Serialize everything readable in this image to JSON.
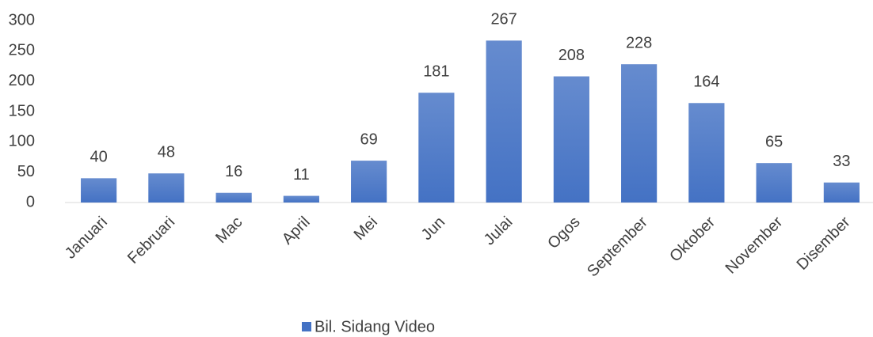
{
  "chart_data": {
    "type": "bar",
    "categories": [
      "Januari",
      "Februari",
      "Mac",
      "April",
      "Mei",
      "Jun",
      "Julai",
      "Ogos",
      "September",
      "Oktober",
      "November",
      "Disember"
    ],
    "series": [
      {
        "name": "Bil. Sidang Video",
        "color": "#4472c4",
        "values": [
          40,
          48,
          16,
          11,
          69,
          181,
          267,
          208,
          228,
          164,
          65,
          33
        ]
      }
    ],
    "ylim": [
      0,
      300
    ],
    "yticks": [
      0,
      50,
      100,
      150,
      200,
      250,
      300
    ],
    "grid": false,
    "legend": "bottom"
  }
}
